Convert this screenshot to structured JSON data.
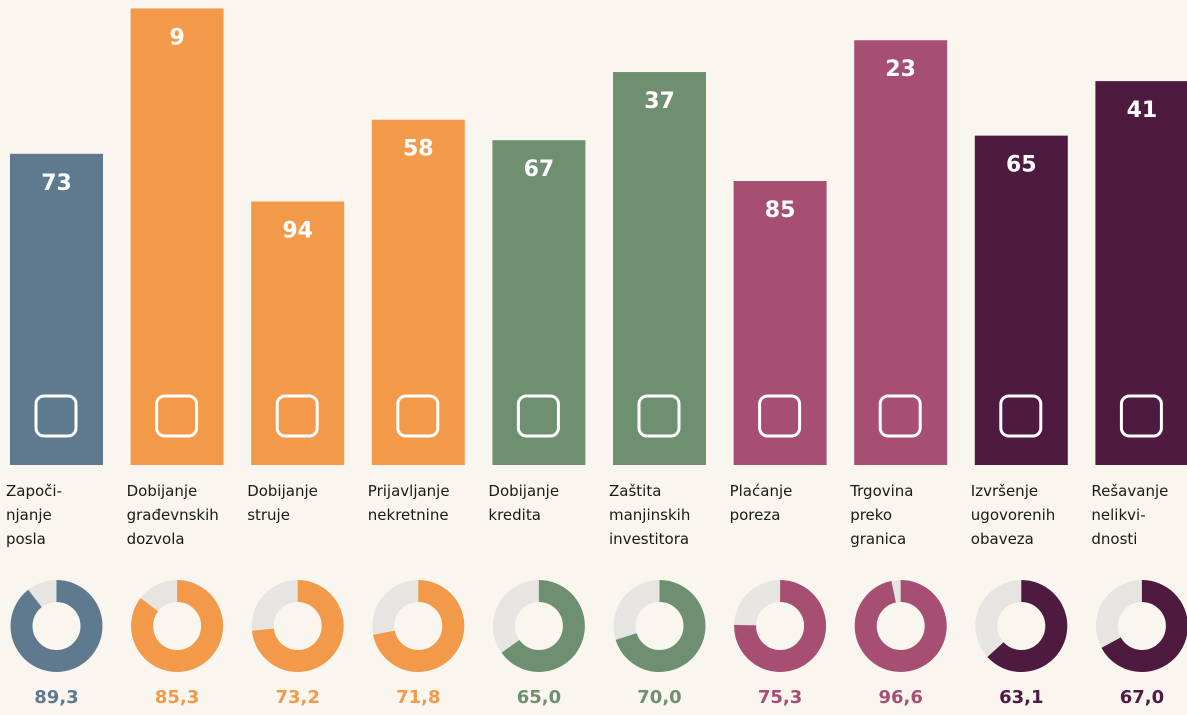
{
  "chart_data": [
    {
      "type": "bar",
      "categories": [
        [
          "Započi-",
          "njanje",
          "posla"
        ],
        [
          "Dobijanje",
          "građevnskih",
          "dozvola"
        ],
        [
          "Dobijanje",
          "struje"
        ],
        [
          "Prijavljanje",
          "nekretnine"
        ],
        [
          "Dobijanje",
          "kredita"
        ],
        [
          "Zaštita",
          "manjinskih",
          "investitora"
        ],
        [
          "Plaćanje",
          "poreza"
        ],
        [
          "Trgovina",
          "preko",
          "granica"
        ],
        [
          "Izvršenje",
          "ugovorenih",
          "obaveza"
        ],
        [
          "Rešavanje",
          "nelikvi-",
          "dnosti"
        ]
      ],
      "values": [
        73,
        9,
        94,
        58,
        67,
        37,
        85,
        23,
        65,
        41
      ],
      "colors": [
        "#5f7a8e",
        "#f29a4a",
        "#f29a4a",
        "#f29a4a",
        "#6f9070",
        "#6f9070",
        "#a64f72",
        "#a64f72",
        "#4f1a40",
        "#4f1a40"
      ],
      "ylim": [
        210,
        0
      ]
    },
    {
      "type": "donut",
      "values": [
        89.3,
        85.3,
        73.2,
        71.8,
        65.0,
        70.0,
        75.3,
        96.6,
        63.1,
        67.0
      ],
      "value_labels": [
        "89,3",
        "85,3",
        "73,2",
        "71,8",
        "65,0",
        "70,0",
        "75,3",
        "96,6",
        "63,1",
        "67,0"
      ],
      "colors": [
        "#5f7a8e",
        "#f29a4a",
        "#f29a4a",
        "#f29a4a",
        "#6f9070",
        "#6f9070",
        "#a64f72",
        "#a64f72",
        "#4f1a40",
        "#4f1a40"
      ],
      "label_colors": [
        "#5f7a8e",
        "#f29a4a",
        "#f29a4a",
        "#f29a4a",
        "#6f9070",
        "#6f9070",
        "#a64f72",
        "#a64f72",
        "#4f1a40",
        "#4f1a40"
      ],
      "ylim": [
        0,
        100
      ],
      "rest_color": "#e7e5e1"
    }
  ]
}
